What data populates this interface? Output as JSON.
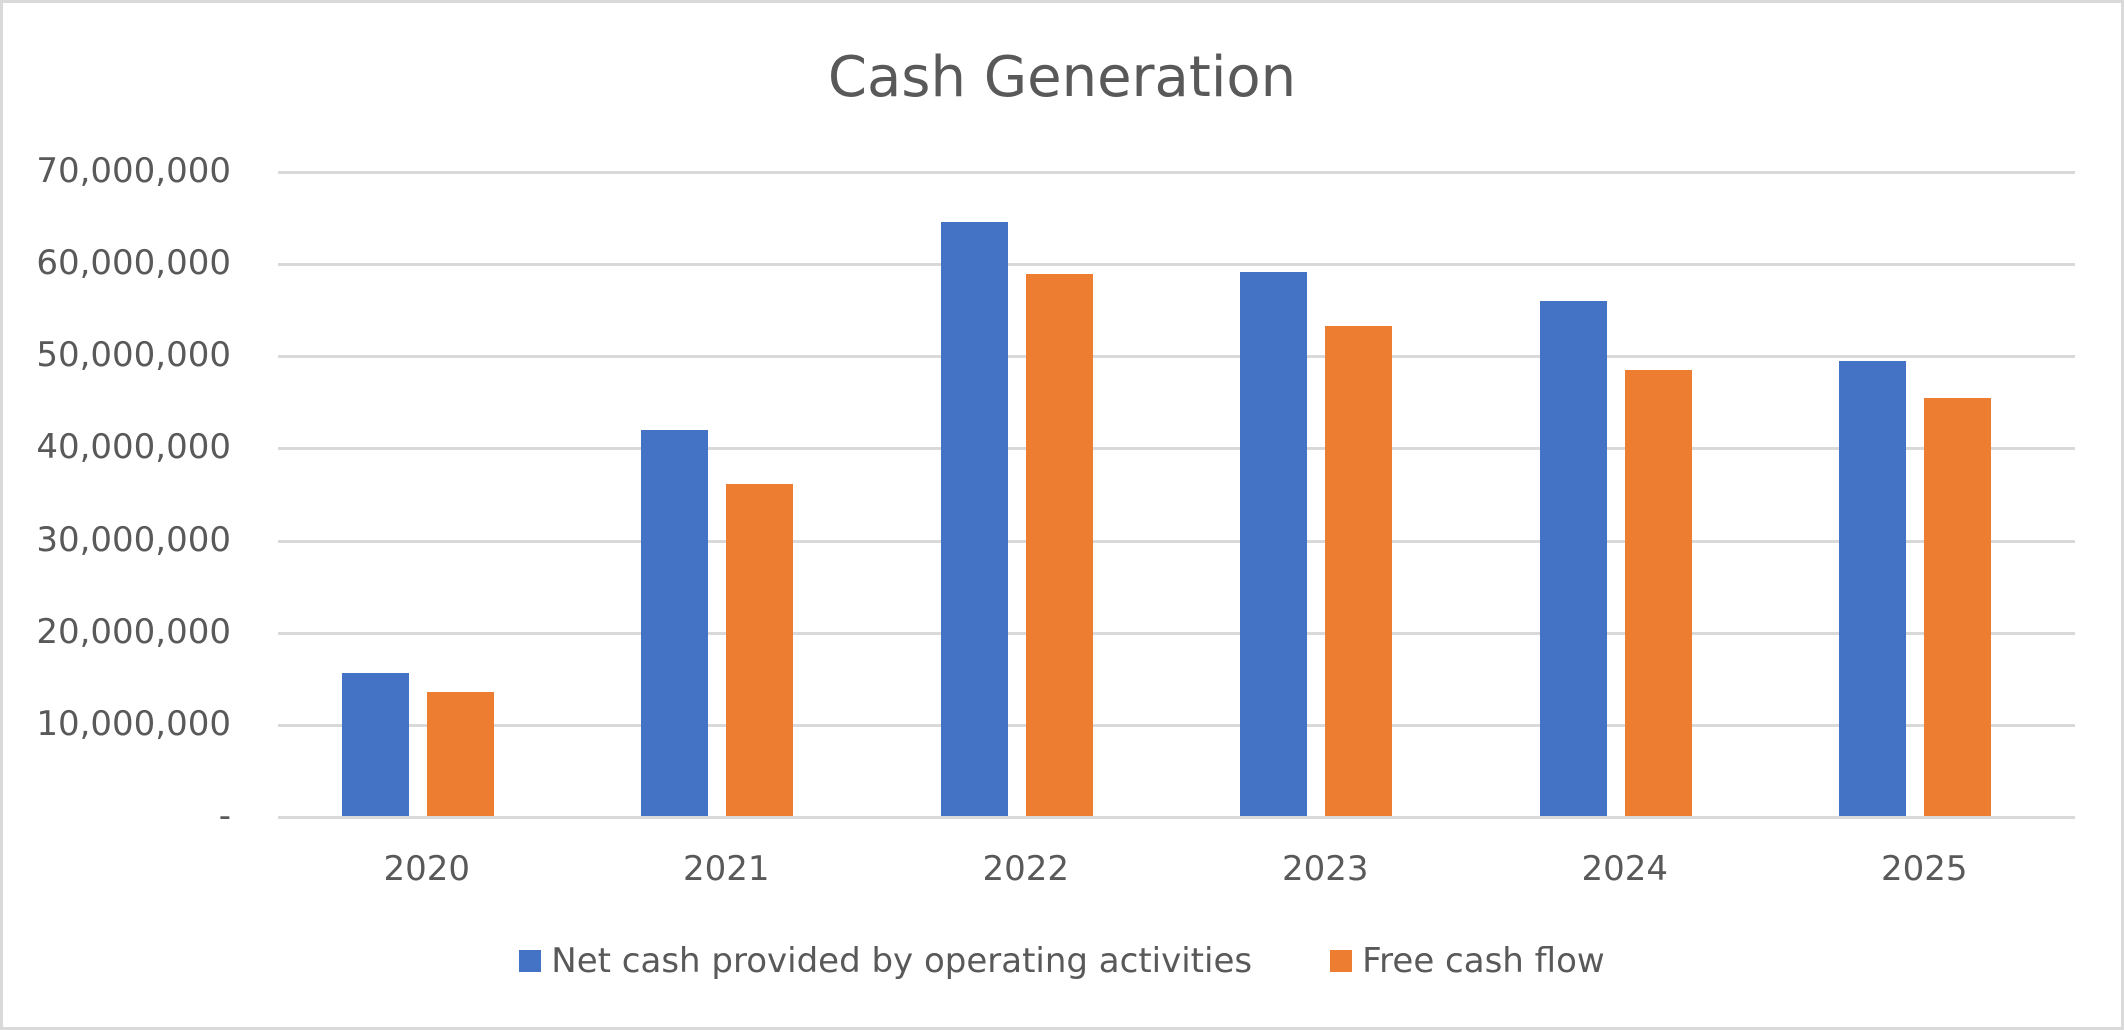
{
  "chart_data": {
    "type": "bar",
    "title": "Cash Generation",
    "xlabel": "",
    "ylabel": "",
    "categories": [
      "2020",
      "2021",
      "2022",
      "2023",
      "2024",
      "2025"
    ],
    "series": [
      {
        "name": "Net cash provided by operating activities",
        "color": "#4472c4",
        "values": [
          15500000,
          41900000,
          64500000,
          59000000,
          55900000,
          49400000
        ]
      },
      {
        "name": "Free cash flow",
        "color": "#ed7d31",
        "values": [
          13500000,
          36000000,
          58800000,
          53200000,
          48400000,
          45400000
        ]
      }
    ],
    "ylim": [
      0,
      70000000
    ],
    "yticks": [
      0,
      10000000,
      20000000,
      30000000,
      40000000,
      50000000,
      60000000,
      70000000
    ],
    "ytick_labels": [
      "-",
      "10,000,000",
      "20,000,000",
      "30,000,000",
      "40,000,000",
      "50,000,000",
      "60,000,000",
      "70,000,000"
    ],
    "grid": true,
    "legend_position": "bottom"
  },
  "colors": {
    "gridline": "#d9d9d9",
    "text": "#595959",
    "border": "#d9d9d9"
  }
}
